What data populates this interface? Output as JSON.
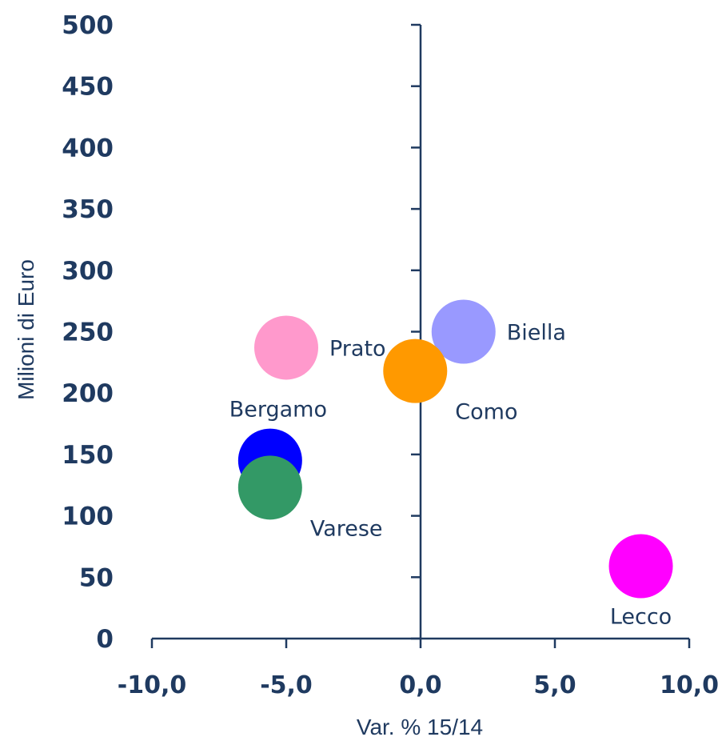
{
  "chart_data": {
    "type": "scatter",
    "title": "",
    "xlabel": "Var. % 15/14",
    "ylabel": "Milioni di Euro",
    "xlim": [
      -10,
      10
    ],
    "ylim": [
      0,
      500
    ],
    "x_ticks": [
      -10,
      -5,
      0,
      5,
      10
    ],
    "x_tick_labels": [
      "-10,0",
      "-5,0",
      "0,0",
      "5,0",
      "10,0"
    ],
    "y_ticks": [
      0,
      50,
      100,
      150,
      200,
      250,
      300,
      350,
      400,
      450,
      500
    ],
    "y_tick_labels": [
      "0",
      "50",
      "100",
      "150",
      "200",
      "250",
      "300",
      "350",
      "400",
      "450",
      "500"
    ],
    "grid": false,
    "legend": "none",
    "points": [
      {
        "label": "Biella",
        "x": 1.6,
        "y": 250,
        "color": "#9999ff",
        "label_pos": "right"
      },
      {
        "label": "Prato",
        "x": -5.0,
        "y": 237,
        "color": "#ff99cc",
        "label_pos": "right"
      },
      {
        "label": "Como",
        "x": -0.2,
        "y": 218,
        "color": "#ff9900",
        "label_pos": "below-right"
      },
      {
        "label": "Bergamo",
        "x": -5.6,
        "y": 145,
        "color": "#0000ff",
        "label_pos": "above"
      },
      {
        "label": "Varese",
        "x": -5.6,
        "y": 123,
        "color": "#339966",
        "label_pos": "below-right"
      },
      {
        "label": "Lecco",
        "x": 8.2,
        "y": 59,
        "color": "#ff00ff",
        "label_pos": "below"
      }
    ]
  }
}
